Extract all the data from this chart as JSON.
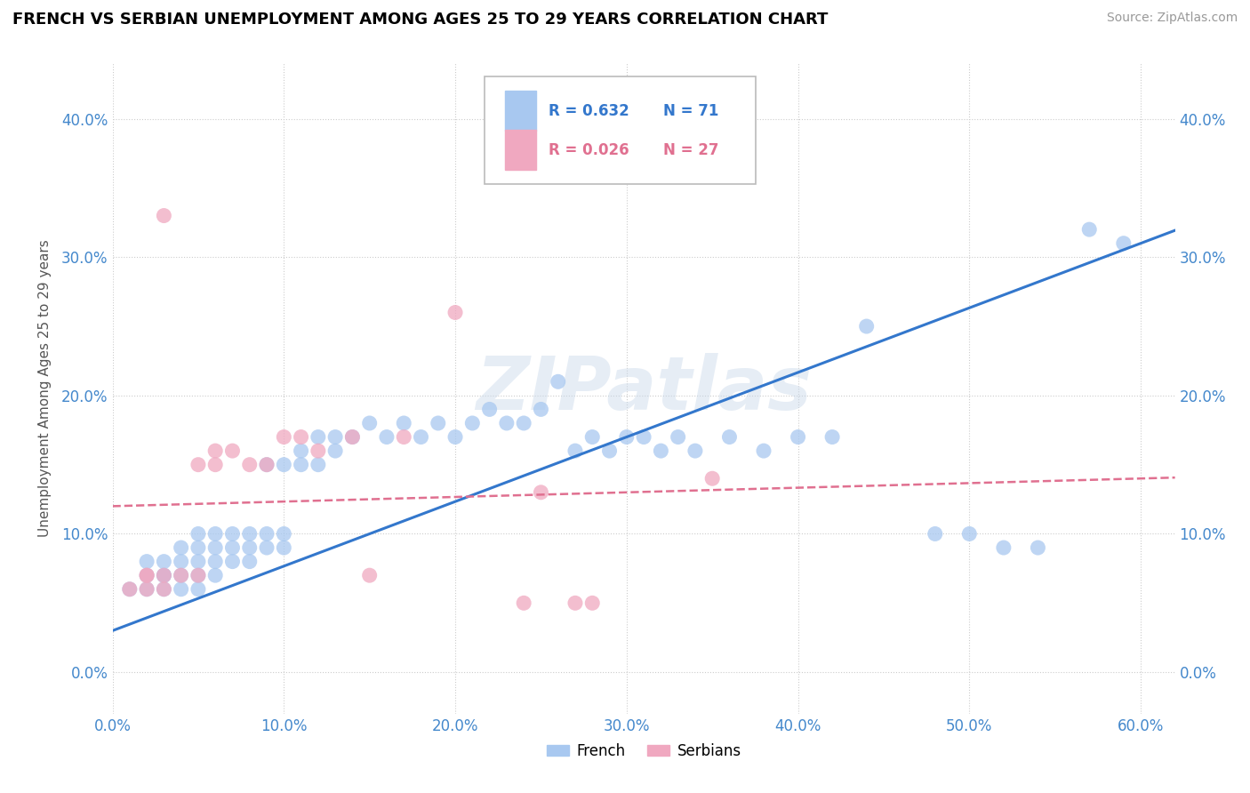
{
  "title": "FRENCH VS SERBIAN UNEMPLOYMENT AMONG AGES 25 TO 29 YEARS CORRELATION CHART",
  "source": "Source: ZipAtlas.com",
  "ylabel": "Unemployment Among Ages 25 to 29 years",
  "xlim": [
    0.0,
    0.62
  ],
  "ylim": [
    -0.03,
    0.44
  ],
  "xticks": [
    0.0,
    0.1,
    0.2,
    0.3,
    0.4,
    0.5,
    0.6
  ],
  "yticks": [
    0.0,
    0.1,
    0.2,
    0.3,
    0.4
  ],
  "french_color": "#a8c8f0",
  "serbian_color": "#f0a8c0",
  "french_line_color": "#3377cc",
  "serbian_line_color": "#e07090",
  "legend_r_french": "R = 0.632",
  "legend_n_french": "N = 71",
  "legend_r_serbian": "R = 0.026",
  "legend_n_serbian": "N = 27",
  "watermark": "ZIPatlas",
  "french_x": [
    0.01,
    0.02,
    0.02,
    0.02,
    0.03,
    0.03,
    0.03,
    0.03,
    0.04,
    0.04,
    0.04,
    0.04,
    0.05,
    0.05,
    0.05,
    0.05,
    0.05,
    0.06,
    0.06,
    0.06,
    0.06,
    0.07,
    0.07,
    0.07,
    0.08,
    0.08,
    0.08,
    0.09,
    0.09,
    0.09,
    0.1,
    0.1,
    0.1,
    0.11,
    0.11,
    0.12,
    0.12,
    0.13,
    0.13,
    0.14,
    0.15,
    0.16,
    0.17,
    0.18,
    0.19,
    0.2,
    0.21,
    0.22,
    0.23,
    0.24,
    0.25,
    0.26,
    0.27,
    0.28,
    0.29,
    0.3,
    0.31,
    0.32,
    0.33,
    0.34,
    0.36,
    0.38,
    0.4,
    0.42,
    0.44,
    0.48,
    0.5,
    0.52,
    0.54,
    0.57,
    0.59
  ],
  "french_y": [
    0.06,
    0.06,
    0.07,
    0.08,
    0.06,
    0.07,
    0.07,
    0.08,
    0.06,
    0.07,
    0.08,
    0.09,
    0.06,
    0.07,
    0.08,
    0.09,
    0.1,
    0.07,
    0.08,
    0.09,
    0.1,
    0.08,
    0.09,
    0.1,
    0.08,
    0.09,
    0.1,
    0.09,
    0.1,
    0.15,
    0.09,
    0.1,
    0.15,
    0.15,
    0.16,
    0.15,
    0.17,
    0.16,
    0.17,
    0.17,
    0.18,
    0.17,
    0.18,
    0.17,
    0.18,
    0.17,
    0.18,
    0.19,
    0.18,
    0.18,
    0.19,
    0.21,
    0.16,
    0.17,
    0.16,
    0.17,
    0.17,
    0.16,
    0.17,
    0.16,
    0.17,
    0.16,
    0.17,
    0.17,
    0.25,
    0.1,
    0.1,
    0.09,
    0.09,
    0.32,
    0.31
  ],
  "serbian_x": [
    0.01,
    0.02,
    0.02,
    0.02,
    0.03,
    0.03,
    0.03,
    0.04,
    0.05,
    0.05,
    0.06,
    0.06,
    0.07,
    0.08,
    0.09,
    0.1,
    0.11,
    0.12,
    0.14,
    0.15,
    0.17,
    0.2,
    0.24,
    0.25,
    0.27,
    0.28,
    0.35
  ],
  "serbian_y": [
    0.06,
    0.06,
    0.07,
    0.07,
    0.06,
    0.07,
    0.33,
    0.07,
    0.07,
    0.15,
    0.15,
    0.16,
    0.16,
    0.15,
    0.15,
    0.17,
    0.17,
    0.16,
    0.17,
    0.07,
    0.17,
    0.26,
    0.05,
    0.13,
    0.05,
    0.05,
    0.14
  ]
}
